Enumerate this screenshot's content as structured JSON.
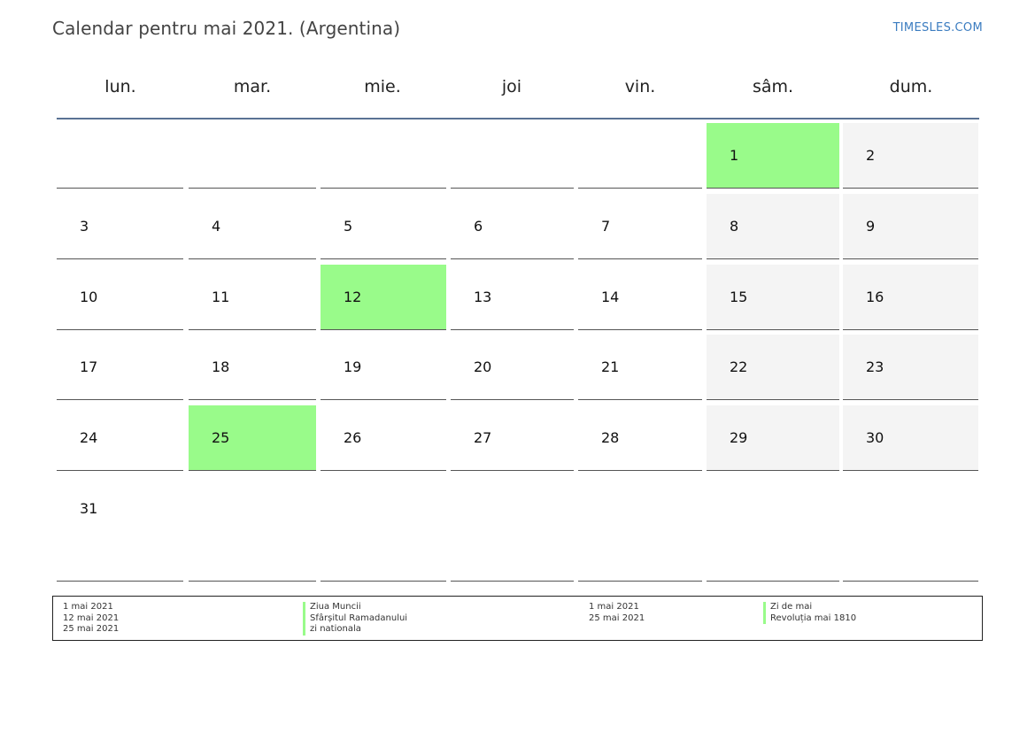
{
  "header": {
    "title": "Calendar pentru mai 2021. (Argentina)",
    "brand": "TIMESLES.COM"
  },
  "weekdays": [
    "lun.",
    "mar.",
    "mie.",
    "joi",
    "vin.",
    "sâm.",
    "dum."
  ],
  "colors": {
    "holiday": "#99fb8a",
    "weekend": "#f4f4f4",
    "header_rule": "#5a7294",
    "brand": "#3b7cc0"
  },
  "weeks": [
    [
      "",
      "",
      "",
      "",
      "",
      "1",
      "2"
    ],
    [
      "3",
      "4",
      "5",
      "6",
      "7",
      "8",
      "9"
    ],
    [
      "10",
      "11",
      "12",
      "13",
      "14",
      "15",
      "16"
    ],
    [
      "17",
      "18",
      "19",
      "20",
      "21",
      "22",
      "23"
    ],
    [
      "24",
      "25",
      "26",
      "27",
      "28",
      "29",
      "30"
    ],
    [
      "31",
      "",
      "",
      "",
      "",
      "",
      ""
    ]
  ],
  "holidays": [
    "1",
    "12",
    "25"
  ],
  "legend": {
    "left": {
      "dates": [
        "1 mai 2021",
        "12 mai 2021",
        "25 mai 2021"
      ],
      "names": [
        "Ziua Muncii",
        "Sfârșitul Ramadanului",
        "zi nationala"
      ]
    },
    "right": {
      "dates": [
        "1 mai 2021",
        "25 mai 2021"
      ],
      "names": [
        "Zi de mai",
        "Revoluția mai 1810"
      ]
    }
  }
}
